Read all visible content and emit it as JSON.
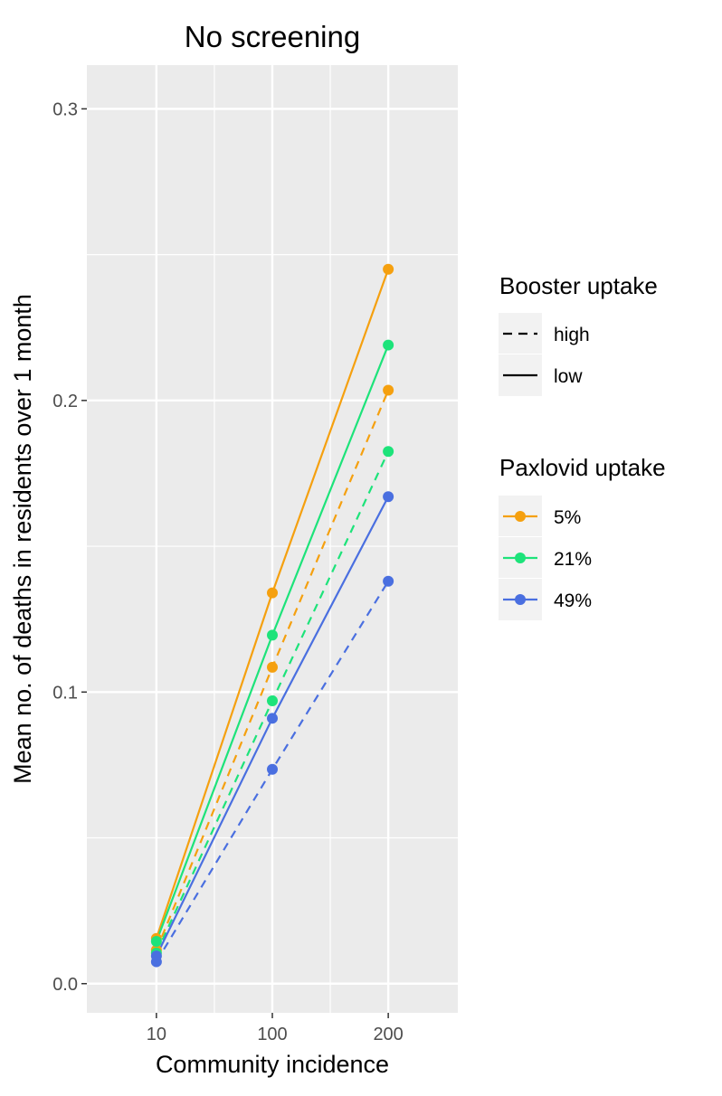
{
  "chart_data": {
    "type": "line",
    "title": "No screening",
    "xlabel": "Community incidence",
    "ylabel": "Mean no. of deaths in residents over 1 month",
    "x": [
      10,
      100,
      200
    ],
    "x_tick_labels": [
      "10",
      "100",
      "200"
    ],
    "y_ticks": [
      0.0,
      0.1,
      0.2,
      0.3
    ],
    "y_tick_labels": [
      "0.0",
      "0.1",
      "0.2",
      "0.3"
    ],
    "ylim": [
      -0.01,
      0.315
    ],
    "grid": true,
    "legend_position": "right",
    "legends": {
      "booster": {
        "title": "Booster uptake",
        "entries": [
          {
            "label": "high",
            "dash": "dashed"
          },
          {
            "label": "low",
            "dash": "solid"
          }
        ]
      },
      "paxlovid": {
        "title": "Paxlovid uptake",
        "entries": [
          {
            "label": "5%",
            "color": "#F5A00F"
          },
          {
            "label": "21%",
            "color": "#1DE37A"
          },
          {
            "label": "49%",
            "color": "#4A6FE0"
          }
        ]
      }
    },
    "series": [
      {
        "paxlovid": "5%",
        "booster": "low",
        "color": "#F5A00F",
        "dash": "solid",
        "values": [
          0.0155,
          0.134,
          0.245
        ]
      },
      {
        "paxlovid": "5%",
        "booster": "high",
        "color": "#F5A00F",
        "dash": "dashed",
        "values": [
          0.0115,
          0.1085,
          0.2035
        ]
      },
      {
        "paxlovid": "21%",
        "booster": "low",
        "color": "#1DE37A",
        "dash": "solid",
        "values": [
          0.0145,
          0.1195,
          0.219
        ]
      },
      {
        "paxlovid": "21%",
        "booster": "high",
        "color": "#1DE37A",
        "dash": "dashed",
        "values": [
          0.0105,
          0.097,
          0.1825
        ]
      },
      {
        "paxlovid": "49%",
        "booster": "low",
        "color": "#4A6FE0",
        "dash": "solid",
        "values": [
          0.0095,
          0.091,
          0.167
        ]
      },
      {
        "paxlovid": "49%",
        "booster": "high",
        "color": "#4A6FE0",
        "dash": "dashed",
        "values": [
          0.0075,
          0.0735,
          0.138
        ]
      }
    ]
  }
}
